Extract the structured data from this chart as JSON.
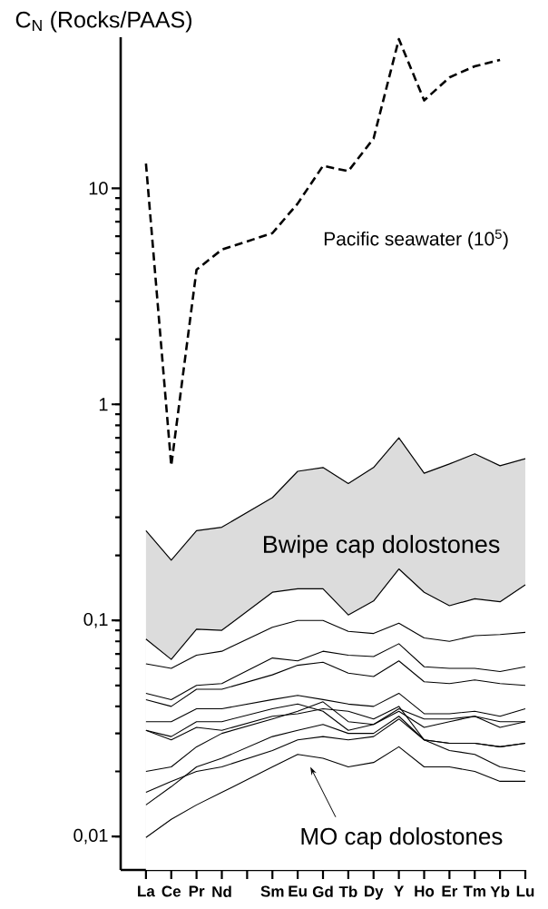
{
  "chart_data": {
    "type": "line",
    "ylabel": "C$_{N}$ (Rocks/PAAS)",
    "categories": [
      "La",
      "Ce",
      "Pr",
      "Nd",
      null,
      "Sm",
      "Eu",
      "Gd",
      "Tb",
      "Dy",
      "Y",
      "Ho",
      "Er",
      "Tm",
      "Yb",
      "Lu"
    ],
    "log": "y",
    "ylim": [
      0.007,
      50
    ],
    "yticks": [
      {
        "value": 0.01,
        "label": "0,01"
      },
      {
        "value": 0.1,
        "label": "0,1"
      },
      1,
      10
    ],
    "line_style": "solid",
    "series": [
      {
        "name": "Pacific seawater (10$^{5}$)",
        "color": "#000000",
        "line_style": "dashed",
        "values": [
          13,
          0.52,
          4.2,
          5.2,
          null,
          6.2,
          8.5,
          12.7,
          12,
          17,
          49,
          25.5,
          32.6,
          36.7,
          39.3,
          null
        ]
      },
      {
        "name": "Bwipe cap dolostones",
        "type": "area",
        "color": "#dcdcdc",
        "values": [
          0.26,
          0.19,
          0.26,
          0.27,
          null,
          0.37,
          0.49,
          0.51,
          0.43,
          0.51,
          0.7,
          0.48,
          0.53,
          0.59,
          0.52,
          0.56
        ]
      },
      {
        "type": "area",
        "color": "#ffffff",
        "values": [
          0.082,
          0.066,
          0.091,
          0.09,
          null,
          0.135,
          0.14,
          0.14,
          0.106,
          0.123,
          0.173,
          0.135,
          0.117,
          0.126,
          0.122,
          0.146
        ]
      },
      {
        "color": "#000000",
        "values": [
          0.063,
          0.06,
          0.069,
          0.072,
          null,
          0.093,
          0.1,
          0.1,
          0.089,
          0.087,
          0.097,
          0.083,
          0.08,
          0.085,
          0.086,
          0.088
        ]
      },
      {
        "color": "#000000",
        "values": [
          0.046,
          0.043,
          0.05,
          0.051,
          null,
          0.067,
          0.065,
          0.072,
          0.069,
          0.068,
          0.078,
          0.061,
          0.06,
          0.06,
          0.058,
          0.061
        ]
      },
      {
        "color": "#000000",
        "values": [
          0.043,
          0.04,
          0.048,
          0.048,
          null,
          0.056,
          0.062,
          0.064,
          0.057,
          0.055,
          0.065,
          0.052,
          0.051,
          0.053,
          0.051,
          0.05
        ]
      },
      {
        "color": "#000000",
        "values": [
          0.034,
          0.034,
          0.039,
          0.039,
          null,
          0.043,
          0.045,
          0.043,
          0.041,
          0.04,
          0.046,
          0.037,
          0.037,
          0.038,
          0.036,
          0.039
        ]
      },
      {
        "color": "#000000",
        "values": [
          0.031,
          0.029,
          0.034,
          0.034,
          null,
          0.039,
          0.041,
          0.038,
          0.031,
          0.033,
          0.039,
          0.035,
          0.035,
          0.036,
          0.034,
          0.034
        ]
      },
      {
        "color": "#000000",
        "values": [
          0.031,
          0.028,
          0.032,
          0.031,
          null,
          0.036,
          0.037,
          0.039,
          0.038,
          0.035,
          0.04,
          0.028,
          0.027,
          0.027,
          0.026,
          0.027
        ]
      },
      {
        "color": "#000000",
        "values": [
          0.02,
          0.021,
          0.026,
          0.03,
          null,
          0.035,
          0.038,
          0.042,
          0.034,
          0.033,
          0.038,
          0.032,
          0.034,
          0.036,
          0.032,
          0.034
        ]
      },
      {
        "color": "#000000",
        "values": [
          0.016,
          0.018,
          0.02,
          0.021,
          null,
          0.025,
          0.028,
          0.029,
          0.028,
          0.029,
          0.035,
          0.028,
          0.027,
          0.027,
          0.026,
          0.027
        ]
      },
      {
        "color": "#000000",
        "values": [
          0.014,
          0.017,
          0.021,
          0.023,
          null,
          0.029,
          0.031,
          0.033,
          0.03,
          0.03,
          0.036,
          0.028,
          0.025,
          0.024,
          0.021,
          0.02
        ]
      },
      {
        "color": "#000000",
        "values": [
          0.0099,
          0.012,
          0.014,
          0.016,
          null,
          0.021,
          0.024,
          0.023,
          0.021,
          0.022,
          0.026,
          0.021,
          0.021,
          0.02,
          0.018,
          0.018
        ]
      }
    ],
    "annotations": [
      "MO cap dolostones"
    ]
  }
}
